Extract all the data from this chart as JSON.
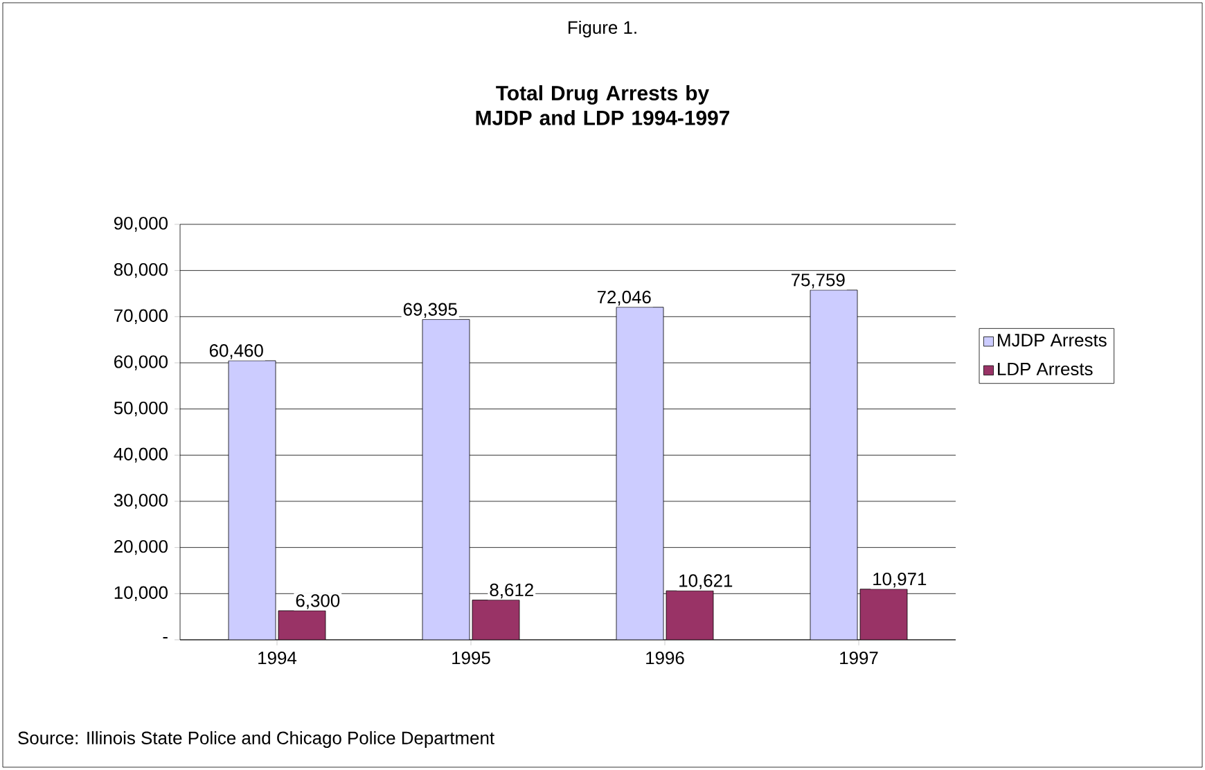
{
  "chart_data": {
    "type": "bar",
    "title": "Total Drug Arrests by MJDP and LDP 1994-1997",
    "categories": [
      "1994",
      "1995",
      "1996",
      "1997"
    ],
    "series": [
      {
        "name": "MJDP Arrests",
        "color": "#ccccff",
        "values": [
          60460,
          69395,
          72046,
          75759
        ],
        "value_labels": [
          "60,460",
          "69,395",
          "72,046",
          "75,759"
        ]
      },
      {
        "name": "LDP Arrests",
        "color": "#993366",
        "values": [
          6300,
          8612,
          10621,
          10971
        ],
        "value_labels": [
          "6,300",
          "8,612",
          "10,621",
          "10,971"
        ]
      }
    ],
    "ylim": [
      0,
      90000
    ],
    "yticks": [
      {
        "value": 0,
        "label": "-"
      },
      {
        "value": 10000,
        "label": "10,000"
      },
      {
        "value": 20000,
        "label": "20,000"
      },
      {
        "value": 30000,
        "label": "30,000"
      },
      {
        "value": 40000,
        "label": "40,000"
      },
      {
        "value": 50000,
        "label": "50,000"
      },
      {
        "value": 60000,
        "label": "60,000"
      },
      {
        "value": 70000,
        "label": "70,000"
      },
      {
        "value": 80000,
        "label": "80,000"
      },
      {
        "value": 90000,
        "label": "90,000"
      }
    ],
    "grid": "y",
    "legend": "right",
    "annotations": [
      "Figure 1.",
      "Source: Illinois State Police and Chicago Police Department"
    ]
  }
}
